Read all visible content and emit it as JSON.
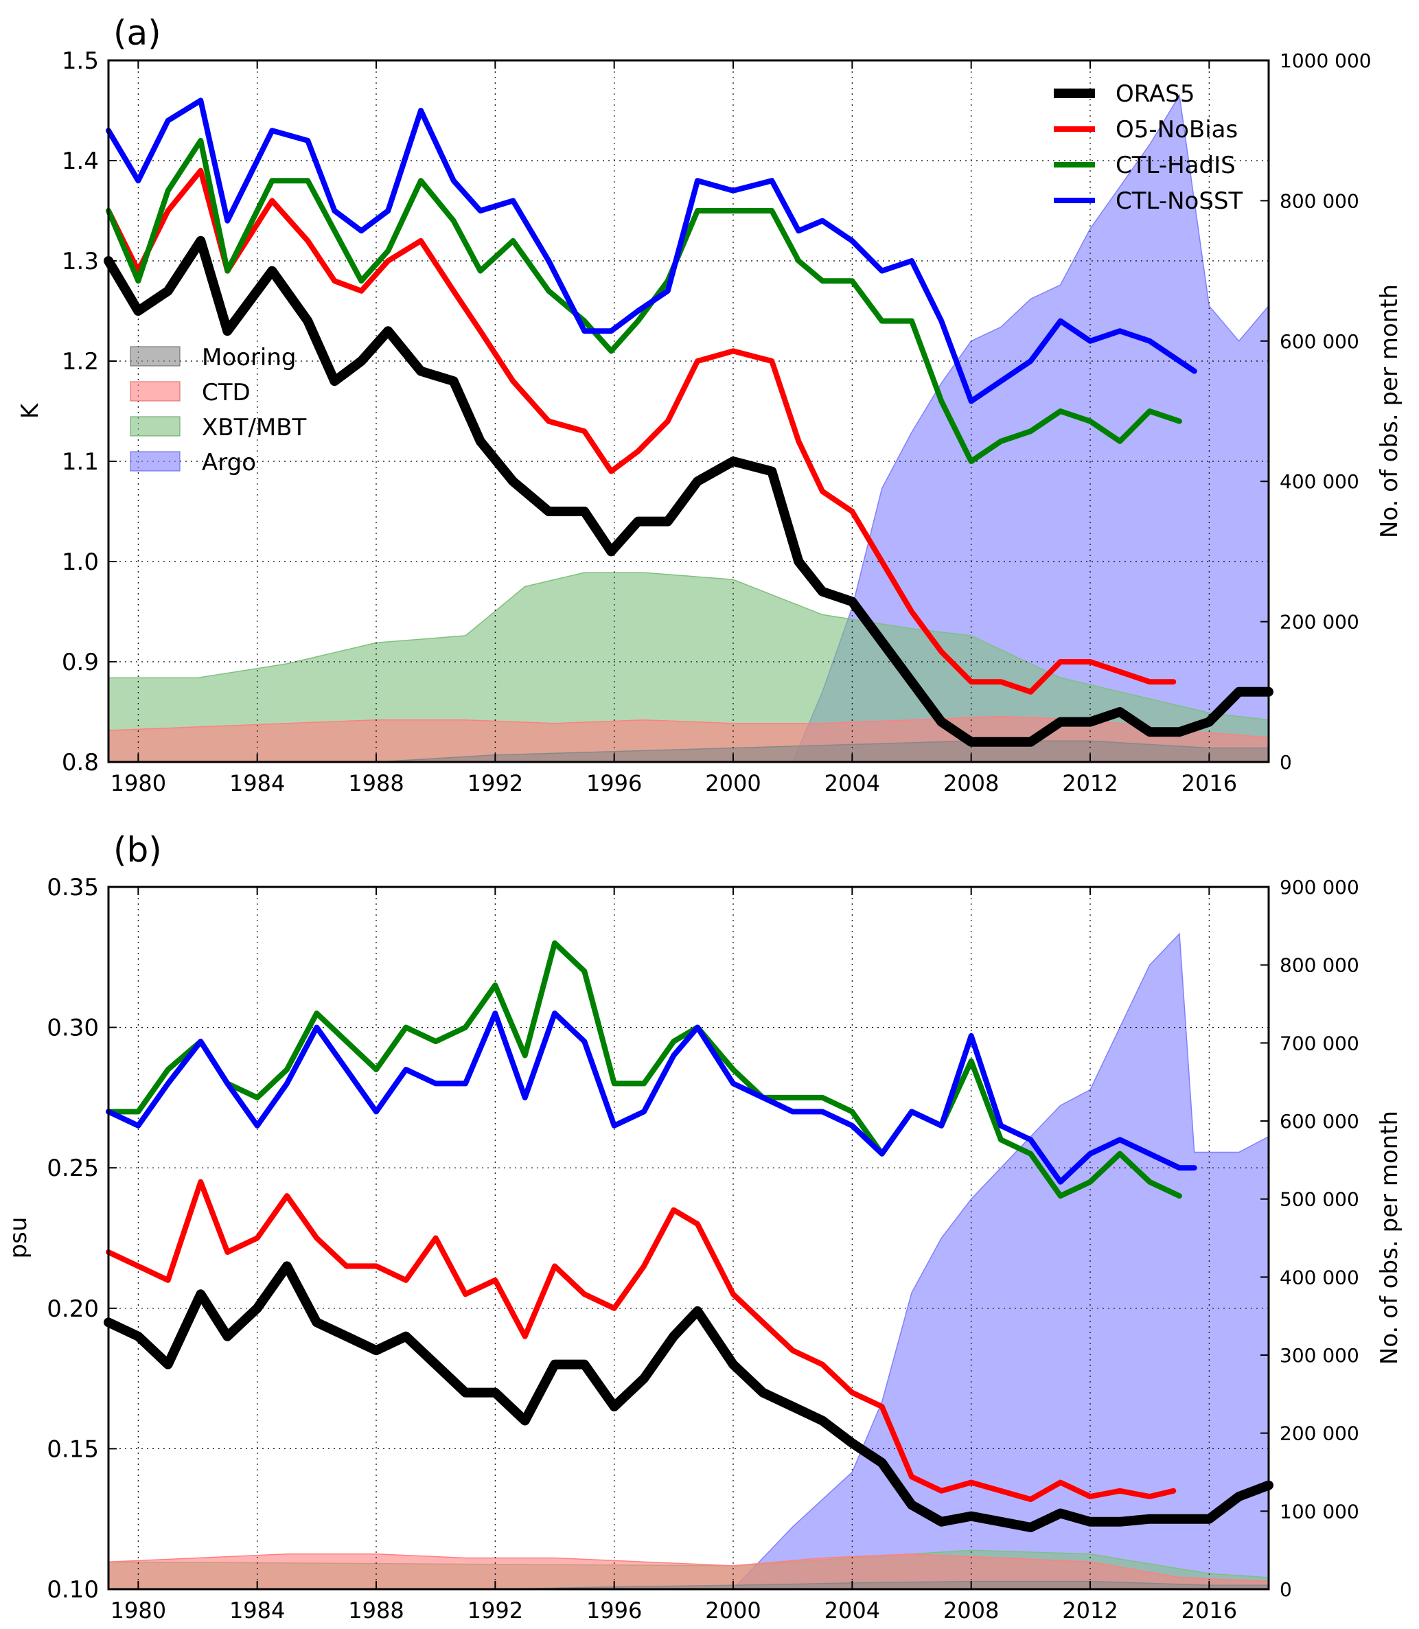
{
  "chart_data": [
    {
      "panel_label": "(a)",
      "type": "line",
      "x_range": [
        1979,
        2018
      ],
      "x_ticks": [
        "1980",
        "1984",
        "1988",
        "1992",
        "1996",
        "2000",
        "2004",
        "2008",
        "2012",
        "2016"
      ],
      "ylabel": "K",
      "ylim": [
        0.8,
        1.5
      ],
      "y_ticks": [
        "0.8",
        "0.9",
        "1.0",
        "1.1",
        "1.2",
        "1.3",
        "1.4",
        "1.5"
      ],
      "y2label": "No. of obs. per month",
      "y2lim": [
        0,
        1000000
      ],
      "y2_ticks": [
        "0",
        "200 000",
        "400 000",
        "600 000",
        "800 000",
        "1000 000"
      ],
      "grid": true,
      "series": [
        {
          "name": "ORAS5",
          "color": "#000000",
          "x": [
            1979.0,
            1980.0,
            1981.0,
            1982.1,
            1983.0,
            1984.5,
            1985.7,
            1986.6,
            1987.5,
            1988.4,
            1989.5,
            1990.6,
            1991.5,
            1992.6,
            1993.8,
            1995.0,
            1995.9,
            1996.8,
            1997.8,
            1998.8,
            2000.0,
            2001.3,
            2002.2,
            2003.0,
            2004.0,
            2005.0,
            2006.0,
            2007.0,
            2008.0,
            2009.0,
            2010.0,
            2011.0,
            2012.0,
            2013.0,
            2014.0,
            2015.0,
            2016.0,
            2017.0,
            2018.0
          ],
          "y": [
            1.3,
            1.25,
            1.27,
            1.32,
            1.23,
            1.29,
            1.24,
            1.18,
            1.2,
            1.23,
            1.19,
            1.18,
            1.12,
            1.08,
            1.05,
            1.05,
            1.01,
            1.04,
            1.04,
            1.08,
            1.1,
            1.09,
            1.0,
            0.97,
            0.96,
            0.92,
            0.88,
            0.84,
            0.82,
            0.82,
            0.82,
            0.84,
            0.84,
            0.85,
            0.83,
            0.83,
            0.84,
            0.87,
            0.87
          ]
        },
        {
          "name": "O5-NoBias",
          "color": "#ff0000",
          "x": [
            1979.0,
            1980.0,
            1981.0,
            1982.1,
            1983.0,
            1984.5,
            1985.7,
            1986.6,
            1987.5,
            1988.4,
            1989.5,
            1990.6,
            1991.5,
            1992.6,
            1993.8,
            1995.0,
            1995.9,
            1996.8,
            1997.8,
            1998.8,
            2000.0,
            2001.3,
            2002.2,
            2003.0,
            2004.0,
            2005.0,
            2006.0,
            2007.0,
            2008.0,
            2009.0,
            2010.0,
            2011.0,
            2012.0,
            2013.0,
            2014.0,
            2014.8
          ],
          "y": [
            1.35,
            1.29,
            1.35,
            1.39,
            1.29,
            1.36,
            1.32,
            1.28,
            1.27,
            1.3,
            1.32,
            1.27,
            1.23,
            1.18,
            1.14,
            1.13,
            1.09,
            1.11,
            1.14,
            1.2,
            1.21,
            1.2,
            1.12,
            1.07,
            1.05,
            1.0,
            0.95,
            0.91,
            0.88,
            0.88,
            0.87,
            0.9,
            0.9,
            0.89,
            0.88,
            0.88
          ]
        },
        {
          "name": "CTL-HadIS",
          "color": "#008000",
          "x": [
            1979.0,
            1980.0,
            1981.0,
            1982.1,
            1983.0,
            1984.5,
            1985.7,
            1986.6,
            1987.5,
            1988.4,
            1989.5,
            1990.6,
            1991.5,
            1992.6,
            1993.8,
            1995.0,
            1995.9,
            1996.8,
            1997.8,
            1998.8,
            2000.0,
            2001.3,
            2002.2,
            2003.0,
            2004.0,
            2005.0,
            2006.0,
            2007.0,
            2008.0,
            2009.0,
            2010.0,
            2011.0,
            2012.0,
            2013.0,
            2014.0,
            2015.0
          ],
          "y": [
            1.35,
            1.28,
            1.37,
            1.42,
            1.29,
            1.38,
            1.38,
            1.33,
            1.28,
            1.31,
            1.38,
            1.34,
            1.29,
            1.32,
            1.27,
            1.24,
            1.21,
            1.24,
            1.28,
            1.35,
            1.35,
            1.35,
            1.3,
            1.28,
            1.28,
            1.24,
            1.24,
            1.16,
            1.1,
            1.12,
            1.13,
            1.15,
            1.14,
            1.12,
            1.15,
            1.14
          ]
        },
        {
          "name": "CTL-NoSST",
          "color": "#0000ff",
          "x": [
            1979.0,
            1980.0,
            1981.0,
            1982.1,
            1983.0,
            1984.5,
            1985.7,
            1986.6,
            1987.5,
            1988.4,
            1989.5,
            1990.6,
            1991.5,
            1992.6,
            1993.8,
            1995.0,
            1995.9,
            1996.8,
            1997.8,
            1998.8,
            2000.0,
            2001.3,
            2002.2,
            2003.0,
            2004.0,
            2005.0,
            2006.0,
            2007.0,
            2008.0,
            2009.0,
            2010.0,
            2011.0,
            2012.0,
            2013.0,
            2014.0,
            2015.0,
            2015.5
          ],
          "y": [
            1.43,
            1.38,
            1.44,
            1.46,
            1.34,
            1.43,
            1.42,
            1.35,
            1.33,
            1.35,
            1.45,
            1.38,
            1.35,
            1.36,
            1.3,
            1.23,
            1.23,
            1.25,
            1.27,
            1.38,
            1.37,
            1.38,
            1.33,
            1.34,
            1.32,
            1.29,
            1.3,
            1.24,
            1.16,
            1.18,
            1.2,
            1.24,
            1.22,
            1.23,
            1.22,
            1.2,
            1.19
          ]
        }
      ],
      "area_series": [
        {
          "name": "Mooring",
          "color": "#888888",
          "x": [
            1979,
            1988,
            1992,
            1996,
            2000,
            2004,
            2008,
            2012,
            2014,
            2016,
            2018
          ],
          "y": [
            0,
            0,
            10000,
            15000,
            20000,
            25000,
            30000,
            30000,
            25000,
            20000,
            20000
          ]
        },
        {
          "name": "CTD",
          "color": "#ff8080",
          "x": [
            1979,
            1982,
            1985,
            1988,
            1991,
            1994,
            1997,
            2000,
            2003,
            2006,
            2009,
            2012,
            2015,
            2018
          ],
          "y": [
            45000,
            50000,
            55000,
            60000,
            60000,
            55000,
            60000,
            55000,
            55000,
            60000,
            65000,
            60000,
            45000,
            35000
          ]
        },
        {
          "name": "XBT/MBT",
          "color": "#80c080",
          "x": [
            1979,
            1982,
            1985,
            1988,
            1991,
            1993,
            1995,
            1997,
            2000,
            2003,
            2006,
            2008,
            2011,
            2014,
            2016,
            2018
          ],
          "y": [
            120000,
            120000,
            140000,
            170000,
            180000,
            250000,
            270000,
            270000,
            260000,
            210000,
            190000,
            180000,
            120000,
            90000,
            70000,
            60000
          ]
        },
        {
          "name": "Argo",
          "color": "#8080ff",
          "x": [
            1979,
            2002,
            2003,
            2004,
            2005,
            2006,
            2007,
            2008,
            2009,
            2010,
            2011,
            2012,
            2013,
            2014,
            2015,
            2016,
            2017,
            2018
          ],
          "y": [
            0,
            0,
            100000,
            220000,
            390000,
            470000,
            540000,
            600000,
            620000,
            660000,
            680000,
            760000,
            820000,
            880000,
            950000,
            650000,
            600000,
            650000
          ]
        }
      ],
      "legend_lines_placement": "top-right",
      "legend_areas_placement": "center-left"
    },
    {
      "panel_label": "(b)",
      "type": "line",
      "x_range": [
        1979,
        2018
      ],
      "x_ticks": [
        "1980",
        "1984",
        "1988",
        "1992",
        "1996",
        "2000",
        "2004",
        "2008",
        "2012",
        "2016"
      ],
      "ylabel": "psu",
      "ylim": [
        0.1,
        0.35
      ],
      "y_ticks": [
        "0.10",
        "0.15",
        "0.20",
        "0.25",
        "0.30",
        "0.35"
      ],
      "y2label": "No. of obs. per month",
      "y2lim": [
        0,
        900000
      ],
      "y2_ticks": [
        "0",
        "100 000",
        "200 000",
        "300 000",
        "400 000",
        "500 000",
        "600 000",
        "700 000",
        "800 000",
        "900 000"
      ],
      "grid": true,
      "series": [
        {
          "name": "ORAS5",
          "color": "#000000",
          "x": [
            1979.0,
            1980.0,
            1981.0,
            1982.1,
            1983.0,
            1984.0,
            1985.0,
            1986.0,
            1987.0,
            1988.0,
            1989.0,
            1990.0,
            1991.0,
            1992.0,
            1993.0,
            1994.0,
            1995.0,
            1996.0,
            1997.0,
            1998.0,
            1998.8,
            2000.0,
            2001.0,
            2002.0,
            2003.0,
            2004.0,
            2005.0,
            2006.0,
            2007.0,
            2008.0,
            2009.0,
            2010.0,
            2011.0,
            2012.0,
            2013.0,
            2014.0,
            2015.0,
            2016.0,
            2017.0,
            2018.0
          ],
          "y": [
            0.195,
            0.19,
            0.18,
            0.205,
            0.19,
            0.2,
            0.215,
            0.195,
            0.19,
            0.185,
            0.19,
            0.18,
            0.17,
            0.17,
            0.16,
            0.18,
            0.18,
            0.165,
            0.175,
            0.19,
            0.199,
            0.18,
            0.17,
            0.165,
            0.16,
            0.152,
            0.145,
            0.13,
            0.124,
            0.126,
            0.124,
            0.122,
            0.127,
            0.124,
            0.124,
            0.125,
            0.125,
            0.125,
            0.133,
            0.137
          ]
        },
        {
          "name": "O5-NoBias",
          "color": "#ff0000",
          "x": [
            1979.0,
            1980.0,
            1981.0,
            1982.1,
            1983.0,
            1984.0,
            1985.0,
            1986.0,
            1987.0,
            1988.0,
            1989.0,
            1990.0,
            1991.0,
            1992.0,
            1993.0,
            1994.0,
            1995.0,
            1996.0,
            1997.0,
            1998.0,
            1998.8,
            2000.0,
            2001.0,
            2002.0,
            2003.0,
            2004.0,
            2005.0,
            2006.0,
            2007.0,
            2008.0,
            2009.0,
            2010.0,
            2011.0,
            2012.0,
            2013.0,
            2014.0,
            2014.8
          ],
          "y": [
            0.22,
            0.215,
            0.21,
            0.245,
            0.22,
            0.225,
            0.24,
            0.225,
            0.215,
            0.215,
            0.21,
            0.225,
            0.205,
            0.21,
            0.19,
            0.215,
            0.205,
            0.2,
            0.215,
            0.235,
            0.23,
            0.205,
            0.195,
            0.185,
            0.18,
            0.17,
            0.165,
            0.14,
            0.135,
            0.138,
            0.135,
            0.132,
            0.138,
            0.133,
            0.135,
            0.133,
            0.135
          ]
        },
        {
          "name": "CTL-HadIS",
          "color": "#008000",
          "x": [
            1979.0,
            1980.0,
            1981.0,
            1982.1,
            1983.0,
            1984.0,
            1985.0,
            1986.0,
            1987.0,
            1988.0,
            1989.0,
            1990.0,
            1991.0,
            1992.0,
            1993.0,
            1994.0,
            1995.0,
            1996.0,
            1997.0,
            1998.0,
            1998.8,
            2000.0,
            2001.0,
            2002.0,
            2003.0,
            2004.0,
            2005.0,
            2006.0,
            2007.0,
            2008.0,
            2009.0,
            2010.0,
            2011.0,
            2012.0,
            2013.0,
            2014.0,
            2015.0
          ],
          "y": [
            0.27,
            0.27,
            0.285,
            0.295,
            0.28,
            0.275,
            0.285,
            0.305,
            0.295,
            0.285,
            0.3,
            0.295,
            0.3,
            0.315,
            0.29,
            0.33,
            0.32,
            0.28,
            0.28,
            0.295,
            0.3,
            0.285,
            0.275,
            0.275,
            0.275,
            0.27,
            0.255,
            0.27,
            0.265,
            0.288,
            0.26,
            0.255,
            0.24,
            0.245,
            0.255,
            0.245,
            0.24
          ]
        },
        {
          "name": "CTL-NoSST",
          "color": "#0000ff",
          "x": [
            1979.0,
            1980.0,
            1981.0,
            1982.1,
            1983.0,
            1984.0,
            1985.0,
            1986.0,
            1987.0,
            1988.0,
            1989.0,
            1990.0,
            1991.0,
            1992.0,
            1993.0,
            1994.0,
            1995.0,
            1996.0,
            1997.0,
            1998.0,
            1998.8,
            2000.0,
            2001.0,
            2002.0,
            2003.0,
            2004.0,
            2005.0,
            2006.0,
            2007.0,
            2008.0,
            2009.0,
            2010.0,
            2011.0,
            2012.0,
            2013.0,
            2014.0,
            2015.0,
            2015.5
          ],
          "y": [
            0.27,
            0.265,
            0.28,
            0.295,
            0.28,
            0.265,
            0.28,
            0.3,
            0.285,
            0.27,
            0.285,
            0.28,
            0.28,
            0.305,
            0.275,
            0.305,
            0.295,
            0.265,
            0.27,
            0.29,
            0.3,
            0.28,
            0.275,
            0.27,
            0.27,
            0.265,
            0.255,
            0.27,
            0.265,
            0.297,
            0.265,
            0.26,
            0.245,
            0.255,
            0.26,
            0.255,
            0.25,
            0.25
          ]
        }
      ],
      "area_series": [
        {
          "name": "Mooring",
          "color": "#888888",
          "x": [
            1979,
            1992,
            1996,
            2000,
            2004,
            2008,
            2012,
            2016,
            2018
          ],
          "y": [
            0,
            0,
            3000,
            5000,
            8000,
            10000,
            10000,
            5000,
            5000
          ]
        },
        {
          "name": "CTD",
          "color": "#ff8080",
          "x": [
            1979,
            1982,
            1985,
            1988,
            1991,
            1994,
            1997,
            2000,
            2003,
            2006,
            2009,
            2012,
            2015,
            2018
          ],
          "y": [
            35000,
            40000,
            45000,
            45000,
            40000,
            40000,
            35000,
            30000,
            40000,
            45000,
            40000,
            35000,
            15000,
            10000
          ]
        },
        {
          "name": "XBT/MBT",
          "color": "#80c080",
          "x": [
            1979,
            2000,
            2004,
            2008,
            2012,
            2016,
            2018
          ],
          "y": [
            35000,
            30000,
            40000,
            50000,
            45000,
            20000,
            15000
          ]
        },
        {
          "name": "Argo",
          "color": "#8080ff",
          "x": [
            1979,
            2000,
            2002,
            2004,
            2005,
            2006,
            2007,
            2008,
            2009,
            2010,
            2011,
            2012,
            2013,
            2014,
            2015,
            2015.5,
            2016,
            2017,
            2018
          ],
          "y": [
            0,
            0,
            80000,
            150000,
            240000,
            380000,
            450000,
            500000,
            540000,
            580000,
            620000,
            640000,
            720000,
            800000,
            840000,
            560000,
            560000,
            560000,
            580000
          ]
        }
      ]
    }
  ]
}
